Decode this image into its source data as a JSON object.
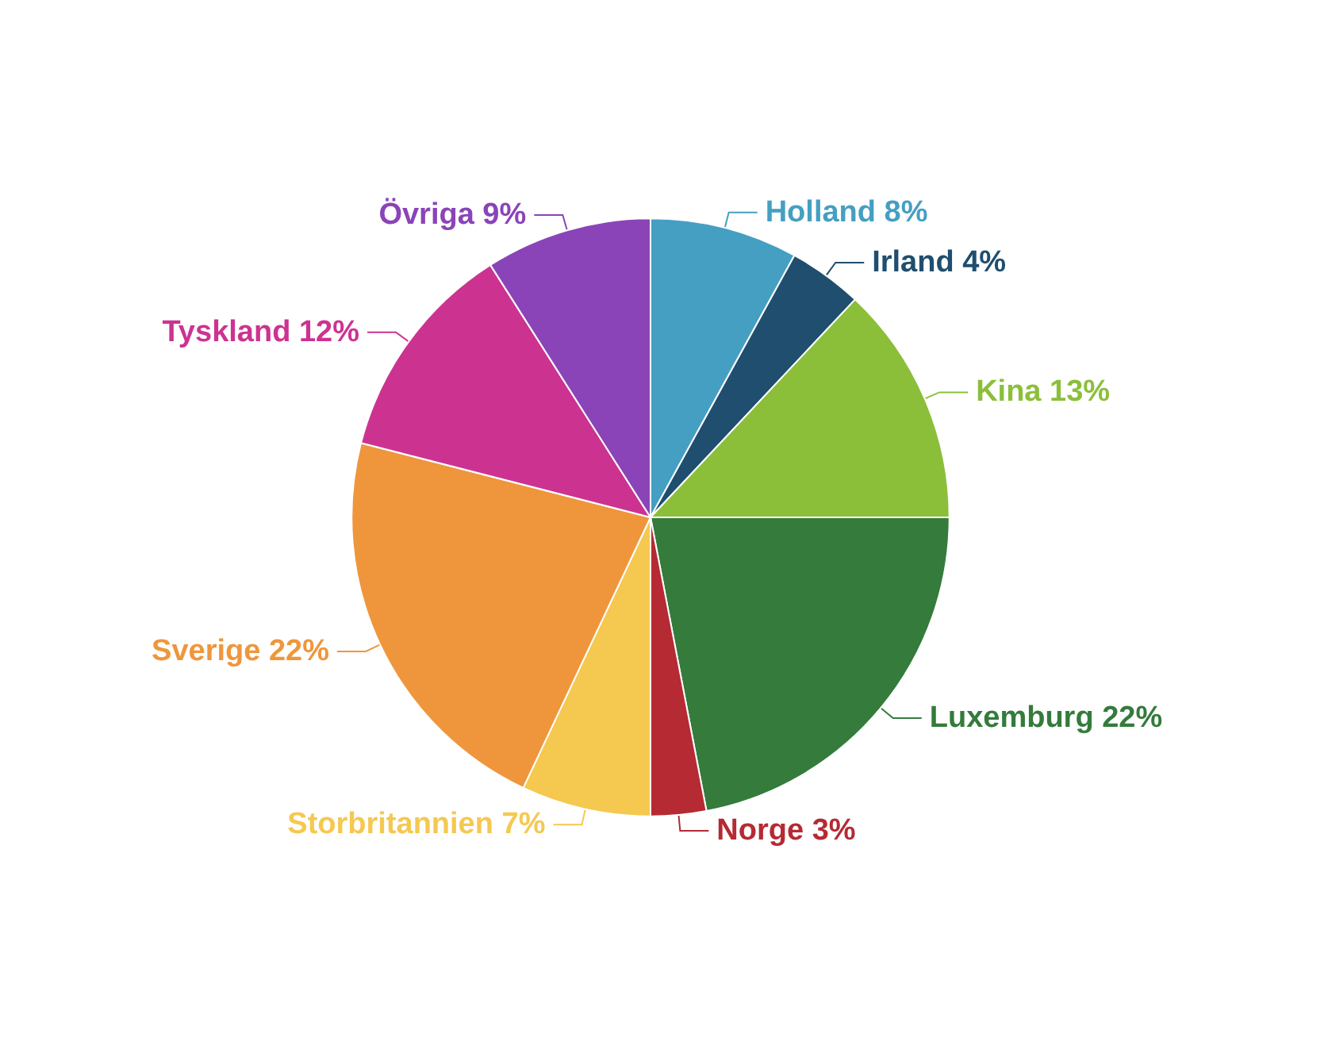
{
  "chart_data": {
    "type": "pie",
    "categories": [
      "Holland",
      "Irland",
      "Kina",
      "Luxemburg",
      "Norge",
      "Storbritannien",
      "Sverige",
      "Tyskland",
      "Övriga"
    ],
    "values": [
      8,
      4,
      13,
      22,
      3,
      7,
      22,
      12,
      9
    ],
    "value_labels": [
      "8%",
      "4%",
      "13%",
      "22%",
      "3%",
      "7%",
      "22%",
      "12%",
      "9%"
    ],
    "colors": [
      "#459fc2",
      "#1f4e6e",
      "#8bbf3a",
      "#347b3c",
      "#b52a33",
      "#f5c850",
      "#ef963c",
      "#cc3391",
      "#8a44b8"
    ],
    "legend": false
  }
}
